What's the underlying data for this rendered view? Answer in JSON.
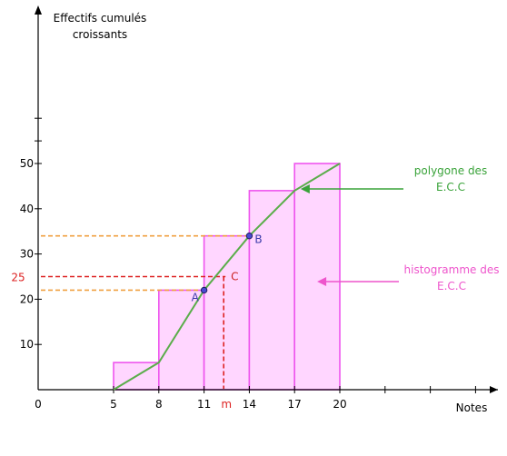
{
  "chart_data": {
    "type": "bar",
    "title": "",
    "ylabel_lines": [
      "Effectifs cumulés",
      "croissants"
    ],
    "xlabel": "Notes",
    "xlim": [
      0,
      31
    ],
    "ylim": [
      0,
      60
    ],
    "x_ticks": [
      0,
      5,
      8,
      11,
      14,
      17,
      20
    ],
    "y_ticks": [
      10,
      20,
      30,
      40,
      50
    ],
    "x_minor_ticks": [
      23,
      26,
      29
    ],
    "y_minor_ticks": [
      55,
      60
    ],
    "histogram": {
      "name": "histogramme des E.C.C",
      "bins": [
        {
          "from": 5,
          "to": 8,
          "value": 6
        },
        {
          "from": 8,
          "to": 11,
          "value": 22
        },
        {
          "from": 11,
          "to": 14,
          "value": 34
        },
        {
          "from": 14,
          "to": 17,
          "value": 44
        },
        {
          "from": 17,
          "to": 20,
          "value": 50
        }
      ],
      "fill": "#ffd6ff",
      "stroke": "#ee55ee"
    },
    "polygon": {
      "name": "polygone des E.C.C",
      "x": [
        5,
        8,
        11,
        14,
        17,
        20
      ],
      "y": [
        0,
        6,
        22,
        34,
        44,
        50
      ],
      "color": "#5aad4a"
    },
    "points": [
      {
        "label": "A",
        "x": 11,
        "y": 22,
        "color": "#3a3aaa"
      },
      {
        "label": "B",
        "x": 14,
        "y": 34,
        "color": "#3a3aaa"
      },
      {
        "label": "C",
        "x": 12.3,
        "y": 25,
        "color": "#cc2222"
      }
    ],
    "median": {
      "label": "m",
      "x": 12.3,
      "y": 25,
      "y_label": "25",
      "color": "#dd2222"
    },
    "guides": [
      {
        "y": 22,
        "x_to": 11,
        "color": "#f0a040"
      },
      {
        "y": 34,
        "x_to": 14,
        "color": "#f0a040"
      }
    ],
    "annotations": [
      {
        "lines": [
          "polygone des",
          "E.C.C"
        ],
        "color": "#3aa33a",
        "arrow_to_x": 17.4,
        "arrow_to_y": 44
      },
      {
        "lines": [
          "histogramme des",
          "E.C.C"
        ],
        "color": "#ee55cc",
        "arrow_to_x": 18.5,
        "arrow_to_y": 24
      }
    ]
  }
}
